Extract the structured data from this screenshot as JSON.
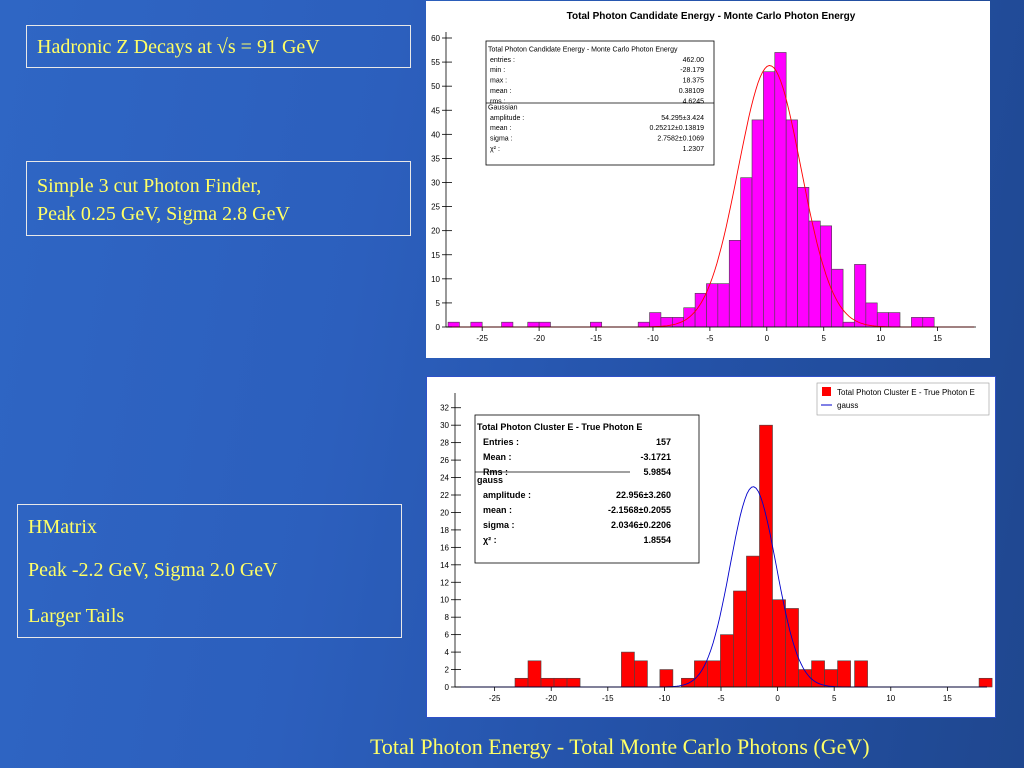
{
  "slide": {
    "title_box": "Hadronic Z Decays at √s = 91 GeV",
    "finder_lines": [
      "Simple 3 cut Photon Finder,",
      "Peak 0.25 GeV, Sigma 2.8 GeV"
    ],
    "hmatrix_lines": [
      "HMatrix",
      "Peak -2.2 GeV, Sigma 2.0 GeV",
      "Larger Tails"
    ],
    "footer": "Total Photon Energy - Total Monte Carlo Photons (GeV)"
  },
  "colors": {
    "background": "#2c5fbd",
    "text": "#ffff66",
    "magenta": "#ff00ff",
    "red": "#ff0000",
    "blue_line": "#0000cc",
    "red_line": "#ff0000"
  },
  "chart_data": [
    {
      "type": "bar",
      "title": "Total Photon Candidate Energy - Monte Carlo Photon Energy",
      "x_ticks": [
        -25,
        -20,
        -15,
        -10,
        -5,
        0,
        5,
        10,
        15
      ],
      "y_ticks": [
        0,
        5,
        10,
        15,
        20,
        25,
        30,
        35,
        40,
        45,
        50,
        55,
        60
      ],
      "xlim": [
        -28.179,
        18.375
      ],
      "ylim": [
        0,
        60
      ],
      "bar_color": "#ff00ff",
      "bin_width": 1,
      "bins": [
        {
          "x": -28,
          "y": 1
        },
        {
          "x": -26,
          "y": 1
        },
        {
          "x": -23.3,
          "y": 1
        },
        {
          "x": -21,
          "y": 1
        },
        {
          "x": -20,
          "y": 1
        },
        {
          "x": -15.5,
          "y": 1
        },
        {
          "x": -11.3,
          "y": 1
        },
        {
          "x": -10.3,
          "y": 3
        },
        {
          "x": -9.3,
          "y": 2
        },
        {
          "x": -8.3,
          "y": 2
        },
        {
          "x": -7.3,
          "y": 4
        },
        {
          "x": -6.3,
          "y": 7
        },
        {
          "x": -5.3,
          "y": 9
        },
        {
          "x": -4.3,
          "y": 9
        },
        {
          "x": -3.3,
          "y": 18
        },
        {
          "x": -2.3,
          "y": 31
        },
        {
          "x": -1.3,
          "y": 43
        },
        {
          "x": -0.3,
          "y": 53
        },
        {
          "x": 0.7,
          "y": 57
        },
        {
          "x": 1.7,
          "y": 43
        },
        {
          "x": 2.7,
          "y": 29
        },
        {
          "x": 3.7,
          "y": 22
        },
        {
          "x": 4.7,
          "y": 21
        },
        {
          "x": 5.7,
          "y": 12
        },
        {
          "x": 6.7,
          "y": 1
        },
        {
          "x": 7.7,
          "y": 13
        },
        {
          "x": 8.7,
          "y": 5
        },
        {
          "x": 9.7,
          "y": 3
        },
        {
          "x": 10.7,
          "y": 3
        },
        {
          "x": 12.7,
          "y": 2
        },
        {
          "x": 13.7,
          "y": 2
        }
      ],
      "fit": {
        "name": "Gaussian",
        "amplitude": 54.295,
        "mean": 0.25212,
        "sigma": 2.7582,
        "color": "#ff0000"
      },
      "stats_box": {
        "header": "Total Photon Candidate Energy - Monte Carlo Photon Energy",
        "rows": [
          {
            "label": "entries :",
            "value": "462.00"
          },
          {
            "label": "min :",
            "value": "-28.179"
          },
          {
            "label": "max :",
            "value": "18.375"
          },
          {
            "label": "mean :",
            "value": "0.38109"
          },
          {
            "label": "rms :",
            "value": "4.6245"
          }
        ],
        "fit_header": "Gaussian",
        "fit_rows": [
          {
            "label": "amplitude :",
            "value": "54.295±3.424"
          },
          {
            "label": "mean :",
            "value": "0.25212±0.13819"
          },
          {
            "label": "sigma :",
            "value": "2.7582±0.1069"
          },
          {
            "label": "χ² :",
            "value": "1.2307"
          }
        ]
      }
    },
    {
      "type": "bar",
      "title": "",
      "x_ticks": [
        -25,
        -20,
        -15,
        -10,
        -5,
        0,
        5,
        10,
        15
      ],
      "y_ticks": [
        0,
        2,
        4,
        6,
        8,
        10,
        12,
        14,
        16,
        18,
        20,
        22,
        24,
        26,
        28,
        30,
        32
      ],
      "xlim": [
        -28.5,
        18.5
      ],
      "ylim": [
        0,
        33
      ],
      "bar_color": "#ff0000",
      "bin_width": 1.15,
      "bins": [
        {
          "x": -23.2,
          "y": 1
        },
        {
          "x": -22.05,
          "y": 3
        },
        {
          "x": -20.9,
          "y": 1
        },
        {
          "x": -19.75,
          "y": 1
        },
        {
          "x": -18.6,
          "y": 1
        },
        {
          "x": -13.8,
          "y": 4
        },
        {
          "x": -12.65,
          "y": 3
        },
        {
          "x": -10.4,
          "y": 2
        },
        {
          "x": -8.5,
          "y": 1
        },
        {
          "x": -7.35,
          "y": 3
        },
        {
          "x": -6.2,
          "y": 3
        },
        {
          "x": -5.05,
          "y": 6
        },
        {
          "x": -3.9,
          "y": 11
        },
        {
          "x": -2.75,
          "y": 15
        },
        {
          "x": -1.6,
          "y": 30
        },
        {
          "x": -0.45,
          "y": 10
        },
        {
          "x": 0.7,
          "y": 9
        },
        {
          "x": 1.85,
          "y": 2
        },
        {
          "x": 3.0,
          "y": 3
        },
        {
          "x": 4.15,
          "y": 2
        },
        {
          "x": 5.3,
          "y": 3
        },
        {
          "x": 6.8,
          "y": 3
        },
        {
          "x": 17.8,
          "y": 1
        }
      ],
      "fit": {
        "name": "gauss",
        "amplitude": 22.956,
        "mean": -2.1568,
        "sigma": 2.0346,
        "color": "#0000cc"
      },
      "legend": [
        {
          "label": "Total Photon Cluster E - True Photon E",
          "color": "#ff0000",
          "kind": "box"
        },
        {
          "label": "gauss",
          "color": "#0000cc",
          "kind": "line"
        }
      ],
      "stats_box": {
        "header": "Total Photon Cluster E - True Photon E",
        "rows": [
          {
            "label": "Entries :",
            "value": "157"
          },
          {
            "label": "Mean :",
            "value": "-3.1721"
          },
          {
            "label": "Rms :",
            "value": "5.9854"
          }
        ],
        "fit_header": "gauss",
        "fit_rows": [
          {
            "label": "amplitude :",
            "value": "22.956±3.260"
          },
          {
            "label": "mean :",
            "value": "-2.1568±0.2055"
          },
          {
            "label": "sigma :",
            "value": "2.0346±0.2206"
          },
          {
            "label": "χ² :",
            "value": "1.8554"
          }
        ]
      }
    }
  ]
}
